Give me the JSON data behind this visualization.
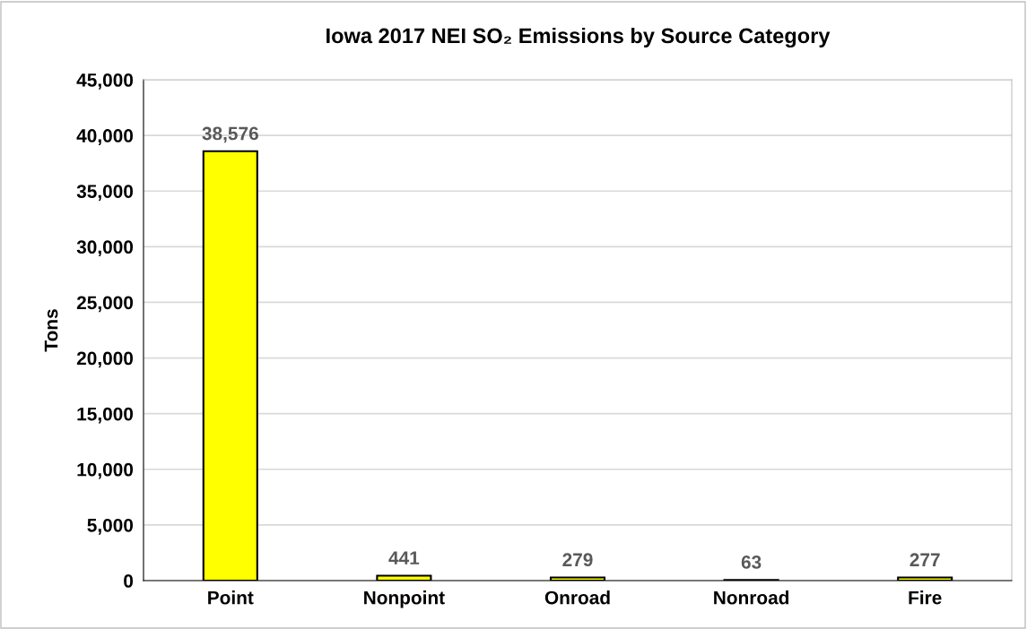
{
  "chart_data": {
    "type": "bar",
    "title": "Iowa 2017 NEI SO₂ Emissions by Source Category",
    "ylabel": "Tons",
    "categories": [
      "Point",
      "Nonpoint",
      "Onroad",
      "Nonroad",
      "Fire"
    ],
    "values": [
      38576,
      441,
      279,
      63,
      277
    ],
    "value_labels": [
      "38,576",
      "441",
      "279",
      "63",
      "277"
    ],
    "color": "#ffff00",
    "ylim": [
      0,
      45000
    ],
    "yticks": [
      {
        "value": 0,
        "label": "0"
      },
      {
        "value": 5000,
        "label": "5,000"
      },
      {
        "value": 10000,
        "label": "10,000"
      },
      {
        "value": 15000,
        "label": "15,000"
      },
      {
        "value": 20000,
        "label": "20,000"
      },
      {
        "value": 25000,
        "label": "25,000"
      },
      {
        "value": 30000,
        "label": "30,000"
      },
      {
        "value": 35000,
        "label": "35,000"
      },
      {
        "value": 40000,
        "label": "40,000"
      },
      {
        "value": 45000,
        "label": "45,000"
      }
    ],
    "grid": "y"
  }
}
